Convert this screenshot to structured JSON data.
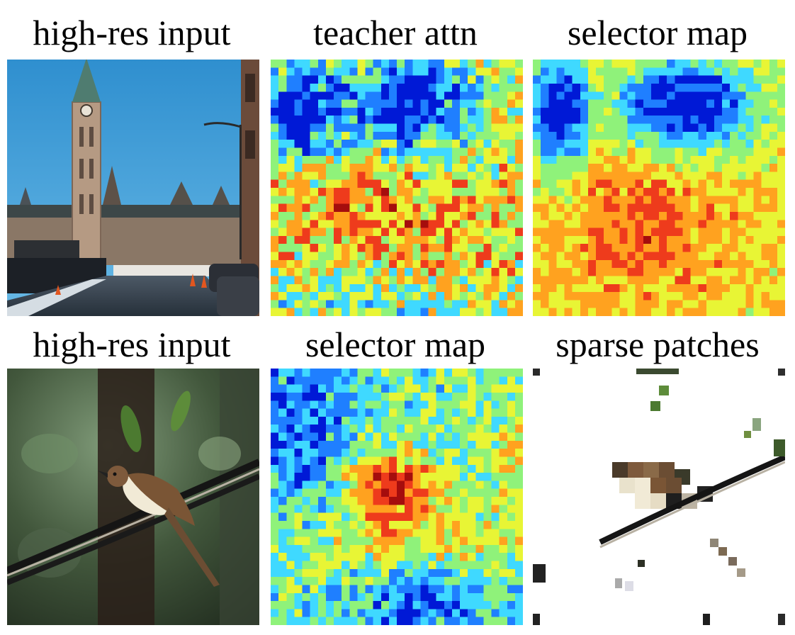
{
  "figure": {
    "rows": [
      {
        "captions": [
          "high-res input",
          "teacher attn",
          "selector map"
        ],
        "photo_subject": "parliament-tower-street"
      },
      {
        "captions": [
          "high-res input",
          "selector map",
          "sparse patches"
        ],
        "photo_subject": "bird-on-wire"
      }
    ],
    "colormap": [
      "#0019d6",
      "#1f7fff",
      "#3fd9ff",
      "#8ff27a",
      "#e8f535",
      "#ffa21f",
      "#ee3b1c",
      "#a50d0d"
    ]
  }
}
